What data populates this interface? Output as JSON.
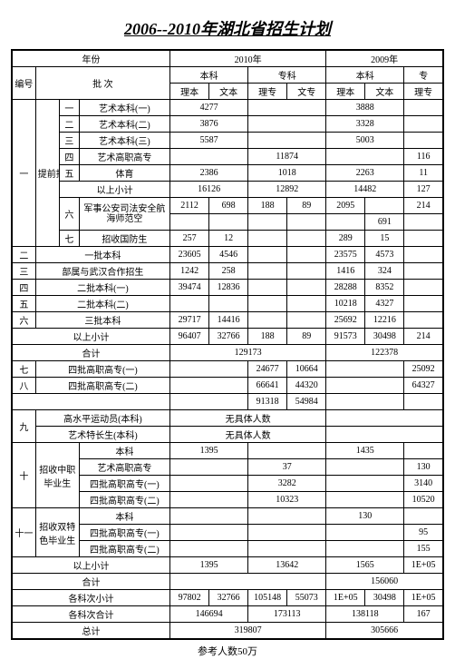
{
  "title": "2006--2010年湖北省招生计划",
  "header": {
    "year_label": "年份",
    "y2010": "2010年",
    "y2009": "2009年",
    "bianhao": "编号",
    "pici": "批      次",
    "benke": "本科",
    "zhuanke": "专科",
    "zhuan": "专",
    "like": "理本",
    "wenke": "文本",
    "lizhuan": "理专",
    "wenzhuan": "文专"
  },
  "rows": {
    "r1": {
      "num": "",
      "sub": "",
      "n": "一",
      "name": "艺术本科(一)",
      "a": "4277",
      "b": "",
      "c": "",
      "d": "",
      "e": "3888",
      "f": "",
      "g": ""
    },
    "r2": {
      "n": "二",
      "name": "艺术本科(二)",
      "a": "3876",
      "e": "3328"
    },
    "r3": {
      "n": "三",
      "name": "艺术本科(三)",
      "a": "5587",
      "e": "5003"
    },
    "r4": {
      "n": "四",
      "name": "艺术高职高专",
      "c": "11874",
      "g": "116"
    },
    "r5": {
      "num": "一",
      "sub": "提前批",
      "n": "五",
      "name": "体育",
      "a": "2386",
      "c": "1018",
      "e": "2263",
      "g": "11"
    },
    "r6": {
      "name": "以上小计",
      "a": "16126",
      "c": "12892",
      "e": "14482",
      "g": "127"
    },
    "r7": {
      "n": "六",
      "name": "军事公安司法安全航海师范空",
      "a": "2112",
      "b": "698",
      "c": "188",
      "d": "89",
      "e": "2095",
      "f": "",
      "g": "214"
    },
    "r7b": {
      "f": "691"
    },
    "r8": {
      "n": "七",
      "name": "招收国防生",
      "a": "257",
      "b": "12",
      "e": "289",
      "f": "15"
    },
    "r9": {
      "num": "二",
      "name": "一批本科",
      "a": "23605",
      "b": "4546",
      "e": "23575",
      "f": "4573"
    },
    "r10": {
      "num": "三",
      "name": "部属与武汉合作招生",
      "a": "1242",
      "b": "258",
      "e": "1416",
      "f": "324"
    },
    "r11": {
      "num": "四",
      "name": "二批本科(一)",
      "a": "39474",
      "b": "12836",
      "e": "28288",
      "f": "8352"
    },
    "r12": {
      "num": "五",
      "name": "二批本科(二)",
      "e": "10218",
      "f": "4327"
    },
    "r13": {
      "num": "六",
      "name": "三批本科",
      "a": "29717",
      "b": "14416",
      "e": "25692",
      "f": "12216"
    },
    "r14": {
      "name": "以上小计",
      "a": "96407",
      "b": "32766",
      "c": "188",
      "d": "89",
      "e": "91573",
      "f": "30498",
      "g": "214"
    },
    "r15": {
      "name": "合计",
      "a": "129173",
      "e": "122378"
    },
    "r16": {
      "num": "七",
      "name": "四批高职高专(一)",
      "c": "24677",
      "d": "10664",
      "g": "25092"
    },
    "r17": {
      "num": "八",
      "name": "四批高职高专(二)",
      "c": "66641",
      "d": "44320",
      "g": "64327"
    },
    "r18": {
      "c": "91318",
      "d": "54984"
    },
    "r19": {
      "num": "九",
      "name1": "高水平运动员(本科)",
      "name2": "艺术特长生(本科)",
      "txt": "无具体人数"
    },
    "r20": {
      "num": "十",
      "sub": "招收中职毕业生",
      "name0": "本科",
      "a": "1395",
      "e": "1435"
    },
    "r21": {
      "name": "艺术高职高专",
      "c": "37",
      "g": "130"
    },
    "r22": {
      "name": "四批高职高专(一)",
      "c": "3282",
      "g": "3140"
    },
    "r23": {
      "name": "四批高职高专(二)",
      "c": "10323",
      "g": "10520"
    },
    "r24": {
      "num": "十一",
      "sub": "招收双特色毕业生",
      "name0": "本科",
      "e": "130"
    },
    "r25": {
      "name": "四批高职高专(一)",
      "g": "95"
    },
    "r26": {
      "name": "四批高职高专(二)",
      "g": "155"
    },
    "r27": {
      "name": "以上小计",
      "a": "1395",
      "c": "13642",
      "e": "1565",
      "g": "1E+05"
    },
    "r28": {
      "name": "合计",
      "e": "156060"
    },
    "r29": {
      "name": "各科次小计",
      "a": "97802",
      "b": "32766",
      "c": "105148",
      "d": "55073",
      "e": "1E+05",
      "f": "30498",
      "g": "1E+05"
    },
    "r30": {
      "name": "各科次合计",
      "a": "146694",
      "c": "173113",
      "e": "138118",
      "g": "167"
    },
    "r31": {
      "name": "总计",
      "a": "319807",
      "e": "305666"
    }
  },
  "footnote": "参考人数50万",
  "colors": {
    "bg": "#ffffff",
    "line": "#000000"
  }
}
